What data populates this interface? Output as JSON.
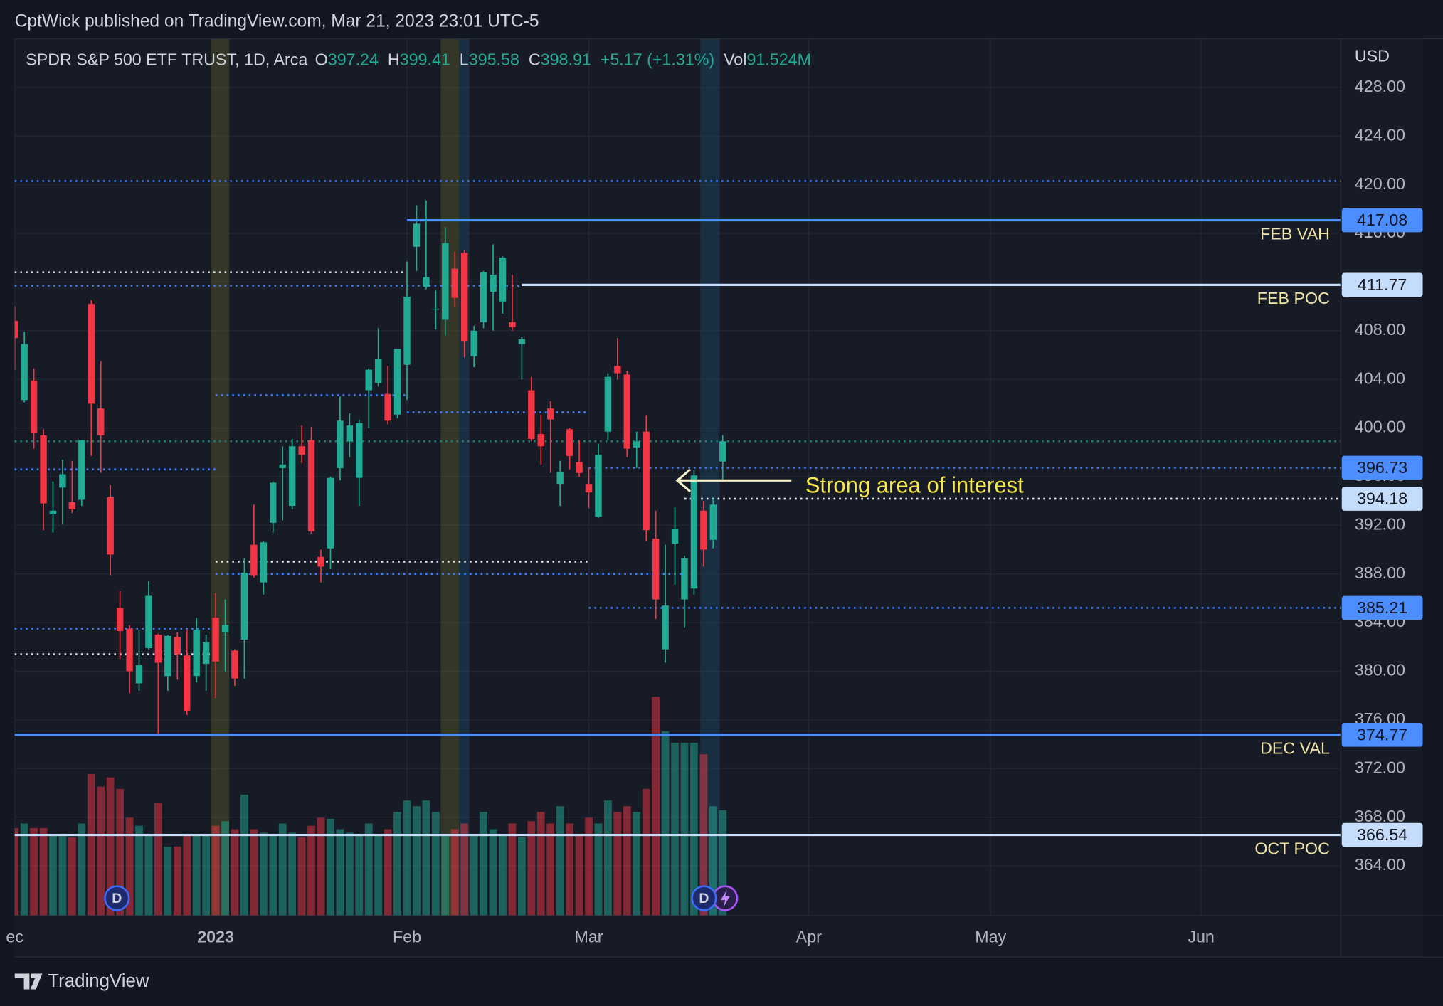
{
  "header": {
    "publisher": "CptWick published on TradingView.com, Mar 21, 2023 23:01 UTC-5",
    "brand": "TradingView"
  },
  "chart_data": {
    "type": "candlestick",
    "title": "SPDR S&P 500 ETF TRUST, 1D, Arca",
    "legend": {
      "o_label": "O",
      "o": 397.24,
      "h_label": "H",
      "h": 399.41,
      "l_label": "L",
      "l": 395.58,
      "c_label": "C",
      "c": 398.91,
      "change": "+5.17 (+1.31%)",
      "vol_label": "Vol",
      "vol": "91.524M"
    },
    "currency": "USD",
    "annotation": "Strong area of interest",
    "event_markers": [
      "D",
      "D"
    ],
    "up_color": "#22ab94",
    "down_color": "#f23645",
    "candles": {
      "open": [
        408.8,
        402.3,
        403.9,
        399.4,
        392.9,
        395.1,
        393.9,
        394.1,
        410.2,
        401.6,
        394.3,
        385.2,
        383.5,
        379.0,
        381.9,
        383.0,
        379.6,
        382.8,
        381.3,
        379.6,
        380.6,
        384.4,
        383.2,
        381.7,
        382.6,
        390.4,
        387.3,
        392.2,
        396.7,
        393.6,
        398.5,
        399.0,
        389.4,
        390.1,
        396.7,
        398.9,
        395.9,
        403.1,
        403.7,
        402.8,
        401.1,
        405.2,
        414.9,
        411.6,
        409.8,
        408.9,
        413.1,
        414.4,
        405.9,
        408.7,
        411.2,
        410.4,
        408.7,
        406.9,
        403.1,
        399.5,
        401.6,
        395.4,
        399.9,
        397.2,
        395.4,
        392.7,
        399.7,
        405.1,
        404.4,
        398.4,
        399.7,
        390.9,
        381.8,
        390.5,
        385.9,
        386.8,
        393.2,
        390.8,
        397.24
      ],
      "high": [
        410.0,
        407.9,
        404.9,
        399.9,
        395.6,
        397.4,
        397.3,
        399.0,
        410.5,
        405.5,
        395.3,
        386.6,
        383.8,
        383.4,
        387.4,
        383.1,
        383.0,
        383.2,
        383.4,
        384.4,
        383.0,
        386.4,
        385.9,
        381.8,
        389.3,
        393.7,
        390.7,
        395.6,
        398.5,
        399.1,
        400.2,
        400.1,
        390.0,
        396.0,
        402.6,
        401.2,
        400.7,
        404.9,
        408.2,
        405.1,
        406.5,
        413.7,
        418.3,
        418.7,
        411.3,
        416.5,
        414.5,
        414.6,
        408.4,
        412.9,
        415.1,
        414.1,
        412.6,
        407.5,
        404.2,
        401.1,
        402.2,
        397.3,
        400.0,
        399.0,
        396.7,
        398.7,
        404.5,
        407.4,
        404.7,
        399.7,
        401.0,
        393.2,
        390.4,
        393.5,
        389.5,
        396.5,
        394.0,
        394.2,
        399.41
      ],
      "low": [
        404.8,
        402.1,
        398.3,
        391.6,
        391.4,
        392.1,
        393.0,
        393.6,
        397.7,
        396.3,
        387.9,
        381.0,
        378.2,
        378.4,
        381.8,
        374.8,
        378.4,
        379.3,
        376.4,
        379.1,
        378.4,
        377.8,
        380.0,
        378.8,
        379.4,
        387.7,
        386.3,
        391.4,
        392.4,
        393.3,
        397.1,
        391.3,
        387.3,
        388.4,
        395.7,
        397.6,
        393.6,
        400.0,
        403.4,
        400.3,
        400.8,
        402.3,
        412.9,
        411.4,
        408.1,
        407.6,
        409.9,
        405.8,
        405.0,
        408.2,
        408.0,
        409.4,
        408.0,
        404.0,
        398.9,
        397.0,
        396.3,
        393.6,
        396.6,
        396.0,
        393.4,
        392.6,
        399.0,
        404.0,
        397.6,
        396.7,
        390.7,
        384.3,
        380.7,
        387.1,
        383.6,
        386.3,
        388.6,
        390.1,
        395.58
      ],
      "close": [
        407.4,
        406.9,
        399.6,
        393.8,
        393.2,
        396.2,
        393.3,
        399.0,
        402.0,
        399.4,
        389.6,
        383.3,
        380.0,
        380.5,
        386.2,
        380.7,
        382.9,
        381.4,
        376.7,
        383.4,
        382.4,
        380.8,
        383.8,
        379.4,
        388.1,
        387.9,
        390.6,
        395.5,
        397.0,
        398.5,
        397.8,
        391.5,
        388.6,
        395.9,
        400.6,
        400.2,
        400.4,
        404.8,
        405.7,
        400.6,
        406.5,
        410.8,
        416.8,
        412.4,
        409.8,
        415.2,
        410.7,
        407.1,
        408.0,
        412.8,
        412.6,
        414.0,
        408.3,
        407.3,
        399.1,
        398.5,
        400.7,
        396.4,
        397.7,
        396.3,
        394.7,
        397.8,
        404.2,
        404.5,
        398.3,
        398.9,
        391.6,
        385.9,
        385.4,
        391.7,
        389.3,
        396.1,
        390.0,
        393.7,
        398.91
      ],
      "volume": [
        76,
        80,
        76,
        76,
        70,
        69,
        68,
        80,
        123,
        112,
        120,
        110,
        85,
        78,
        70,
        98,
        60,
        60,
        70,
        70,
        70,
        78,
        82,
        75,
        105,
        75,
        72,
        70,
        80,
        72,
        68,
        78,
        85,
        84,
        75,
        72,
        70,
        80,
        70,
        75,
        90,
        100,
        95,
        100,
        90,
        70,
        75,
        80,
        70,
        90,
        75,
        70,
        80,
        68,
        82,
        90,
        80,
        95,
        80,
        70,
        85,
        80,
        100,
        90,
        95,
        90,
        110,
        190,
        160,
        150,
        150,
        150,
        140,
        95,
        91.524
      ]
    },
    "xlim": [
      0,
      138.6
    ],
    "xticks": [
      {
        "value": 0,
        "label": "ec"
      },
      {
        "value": 21,
        "label": "2023"
      },
      {
        "value": 41,
        "label": "Feb"
      },
      {
        "value": 60,
        "label": "Mar"
      },
      {
        "value": 83,
        "label": "Apr"
      },
      {
        "value": 102,
        "label": "May"
      },
      {
        "value": 124,
        "label": "Jun"
      }
    ],
    "ylim": [
      359.9,
      432
    ],
    "yticks": [
      {
        "value": 364,
        "label": "364.00"
      },
      {
        "value": 368,
        "label": "368.00"
      },
      {
        "value": 372,
        "label": "372.00"
      },
      {
        "value": 376,
        "label": "376.00"
      },
      {
        "value": 380,
        "label": "380.00"
      },
      {
        "value": 384,
        "label": "384.00"
      },
      {
        "value": 388,
        "label": "388.00"
      },
      {
        "value": 392,
        "label": "392.00"
      },
      {
        "value": 396,
        "label": "396.00"
      },
      {
        "value": 400,
        "label": "400.00"
      },
      {
        "value": 404,
        "label": "404.00"
      },
      {
        "value": 408,
        "label": "408.00"
      },
      {
        "value": 412,
        "label": "412.00"
      },
      {
        "value": 416,
        "label": "416.00"
      },
      {
        "value": 420,
        "label": "420.00"
      },
      {
        "value": 424,
        "label": "424.00"
      },
      {
        "value": 428,
        "label": "428.00"
      }
    ],
    "grid": true,
    "lines": [
      {
        "value": 420.3,
        "color": "#3d7fff",
        "style": "dotted",
        "start": 0
      },
      {
        "value": 412.8,
        "color": "#d8dde8",
        "style": "dotted",
        "start": 0,
        "end": 41
      },
      {
        "value": 411.7,
        "color": "#3d7fff",
        "style": "dotted",
        "start": 0,
        "end": 53
      },
      {
        "value": 402.7,
        "color": "#3d7fff",
        "style": "dotted",
        "start": 21,
        "end": 41
      },
      {
        "value": 401.3,
        "color": "#3d7fff",
        "style": "dotted",
        "start": 41,
        "end": 60
      },
      {
        "value": 396.6,
        "color": "#3d7fff",
        "style": "dotted",
        "start": 0,
        "end": 21
      },
      {
        "value": 389.0,
        "color": "#d8dde8",
        "style": "dotted",
        "start": 21,
        "end": 60
      },
      {
        "value": 388.0,
        "color": "#3d7fff",
        "style": "dotted",
        "start": 21,
        "end": 70
      },
      {
        "value": 383.5,
        "color": "#3d7fff",
        "style": "dotted",
        "start": 0,
        "end": 21
      },
      {
        "value": 381.4,
        "color": "#d8dde8",
        "style": "dotted",
        "start": 0,
        "end": 21
      },
      {
        "value": 398.91,
        "color": "#1e7f74",
        "style": "dotted",
        "start": 0
      },
      {
        "value": 417.08,
        "color": "#4c8dff",
        "style": "solid",
        "start": 41,
        "label": "FEB VAH",
        "box": "#4c8dff"
      },
      {
        "value": 411.77,
        "color": "#c6dcfb",
        "style": "solid",
        "start": 53,
        "label": "FEB POC",
        "box": "#c6dcfb"
      },
      {
        "value": 396.73,
        "color": "#3d7fff",
        "style": "dotted",
        "start": 60,
        "box": "#4c8dff"
      },
      {
        "value": 394.18,
        "color": "#e8ecf3",
        "style": "dotted",
        "start": 70,
        "box": "#c6dcfb"
      },
      {
        "value": 385.21,
        "color": "#3d7fff",
        "style": "dotted",
        "start": 60,
        "box": "#4c8dff"
      },
      {
        "value": 374.77,
        "color": "#4c8dff",
        "style": "solid",
        "start": 0,
        "label": "DEC VAL",
        "box": "#4c8dff"
      },
      {
        "value": 366.54,
        "color": "#c6dcfb",
        "style": "solid",
        "start": 0,
        "label": "OCT POC",
        "box": "#c6dcfb"
      }
    ]
  }
}
